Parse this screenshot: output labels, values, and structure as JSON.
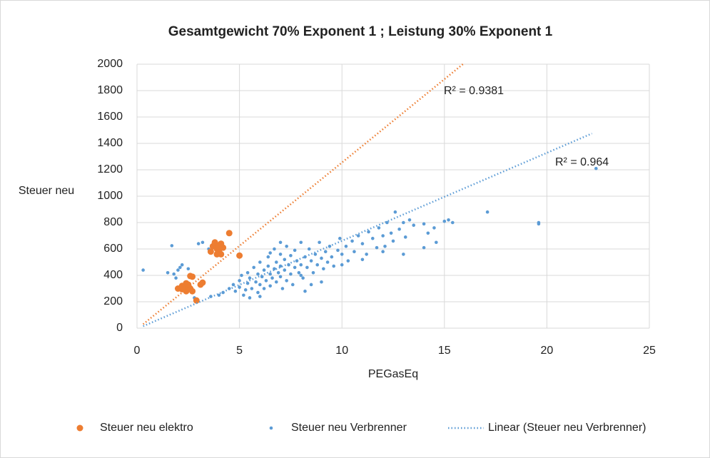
{
  "chart_data": {
    "type": "scatter",
    "title": "Gesamtgewicht 70% Exponent 1 ; Leistung 30% Exponent 1",
    "xlabel": "PEGasEq",
    "ylabel": "Steuer neu",
    "xlim": [
      0,
      25
    ],
    "xticks": [
      0,
      5,
      10,
      15,
      20,
      25
    ],
    "ylim": [
      0,
      2000
    ],
    "yticks": [
      0,
      200,
      400,
      600,
      800,
      1000,
      1200,
      1400,
      1600,
      1800,
      2000
    ],
    "grid": true,
    "legend": "bottom",
    "series": [
      {
        "name": "Steuer neu elektro",
        "color": "#ed7d31",
        "x": [
          2.0,
          2.2,
          2.3,
          2.4,
          2.5,
          2.6,
          2.7,
          2.4,
          2.6,
          2.7,
          2.9,
          3.1,
          3.2,
          2.2,
          3.6,
          3.7,
          3.8,
          3.9,
          4.0,
          4.1,
          4.1,
          4.2,
          3.9,
          4.5,
          5.0,
          3.8,
          4.0,
          2.5
        ],
        "values": [
          300,
          320,
          310,
          280,
          330,
          300,
          280,
          340,
          395,
          390,
          210,
          330,
          345,
          295,
          580,
          620,
          640,
          600,
          580,
          640,
          560,
          610,
          560,
          720,
          550,
          650,
          620,
          310
        ]
      },
      {
        "name": "Steuer neu Verbrenner",
        "color": "#5b9bd5",
        "x": [
          0.3,
          1.5,
          1.7,
          1.8,
          2.0,
          2.1,
          2.2,
          1.9,
          2.5,
          3.0,
          3.2,
          3.5,
          2.8,
          3.6,
          4.0,
          4.2,
          4.5,
          4.7,
          4.8,
          5.0,
          5.0,
          5.1,
          5.2,
          5.3,
          5.4,
          5.4,
          5.5,
          5.6,
          5.7,
          5.8,
          5.9,
          5.9,
          6.0,
          6.0,
          6.1,
          6.2,
          6.2,
          6.3,
          6.4,
          6.4,
          6.5,
          6.5,
          6.6,
          6.7,
          6.7,
          6.8,
          6.8,
          6.9,
          7.0,
          7.0,
          7.0,
          7.1,
          7.2,
          7.2,
          7.3,
          7.3,
          7.4,
          7.5,
          7.5,
          7.6,
          7.7,
          7.7,
          7.8,
          7.9,
          8.0,
          8.0,
          8.1,
          8.2,
          8.2,
          8.3,
          8.4,
          8.5,
          8.6,
          8.7,
          8.8,
          8.9,
          9.0,
          9.1,
          9.2,
          9.3,
          9.4,
          9.5,
          9.6,
          9.8,
          9.9,
          10.0,
          10.2,
          10.3,
          10.5,
          10.6,
          10.8,
          11.0,
          11.2,
          11.3,
          11.5,
          11.7,
          11.8,
          12.0,
          12.1,
          12.2,
          12.4,
          12.5,
          12.6,
          12.8,
          13.0,
          13.1,
          13.3,
          13.5,
          14.0,
          14.2,
          14.5,
          14.6,
          15.0,
          15.2,
          15.4,
          17.1,
          19.6,
          19.6,
          22.4,
          9.0,
          8.5,
          6.0,
          12.0,
          13.0,
          10.0,
          11.0,
          14.0,
          7.0,
          6.5,
          8.0,
          5.5
        ],
        "values": [
          440,
          420,
          625,
          410,
          440,
          460,
          480,
          380,
          450,
          640,
          650,
          600,
          230,
          240,
          250,
          270,
          300,
          330,
          280,
          310,
          360,
          400,
          250,
          290,
          340,
          420,
          380,
          300,
          460,
          350,
          410,
          270,
          330,
          500,
          390,
          440,
          300,
          360,
          470,
          540,
          410,
          320,
          380,
          450,
          600,
          500,
          350,
          420,
          390,
          470,
          560,
          300,
          440,
          520,
          360,
          620,
          480,
          410,
          550,
          330,
          460,
          590,
          510,
          420,
          480,
          650,
          380,
          540,
          280,
          460,
          600,
          510,
          420,
          560,
          480,
          650,
          530,
          450,
          580,
          500,
          620,
          540,
          470,
          590,
          680,
          560,
          620,
          510,
          660,
          580,
          700,
          640,
          560,
          730,
          680,
          610,
          760,
          700,
          620,
          800,
          720,
          660,
          880,
          750,
          800,
          690,
          820,
          780,
          790,
          720,
          760,
          650,
          810,
          820,
          800,
          880,
          800,
          790,
          1210,
          350,
          330,
          240,
          580,
          560,
          480,
          520,
          610,
          650,
          570,
          400,
          230
        ]
      }
    ],
    "trendlines": [
      {
        "name": "Linear (Steuer neu Verbrenner)",
        "color": "#5b9bd5",
        "x": [
          0.3,
          22.2
        ],
        "values": [
          15,
          1475
        ]
      },
      {
        "color": "#ed7d31",
        "x": [
          0.3,
          15.9
        ],
        "values": [
          30,
          2000
        ]
      }
    ],
    "annotations": [
      "R² = 0.9381",
      "R² = 0.964"
    ]
  }
}
